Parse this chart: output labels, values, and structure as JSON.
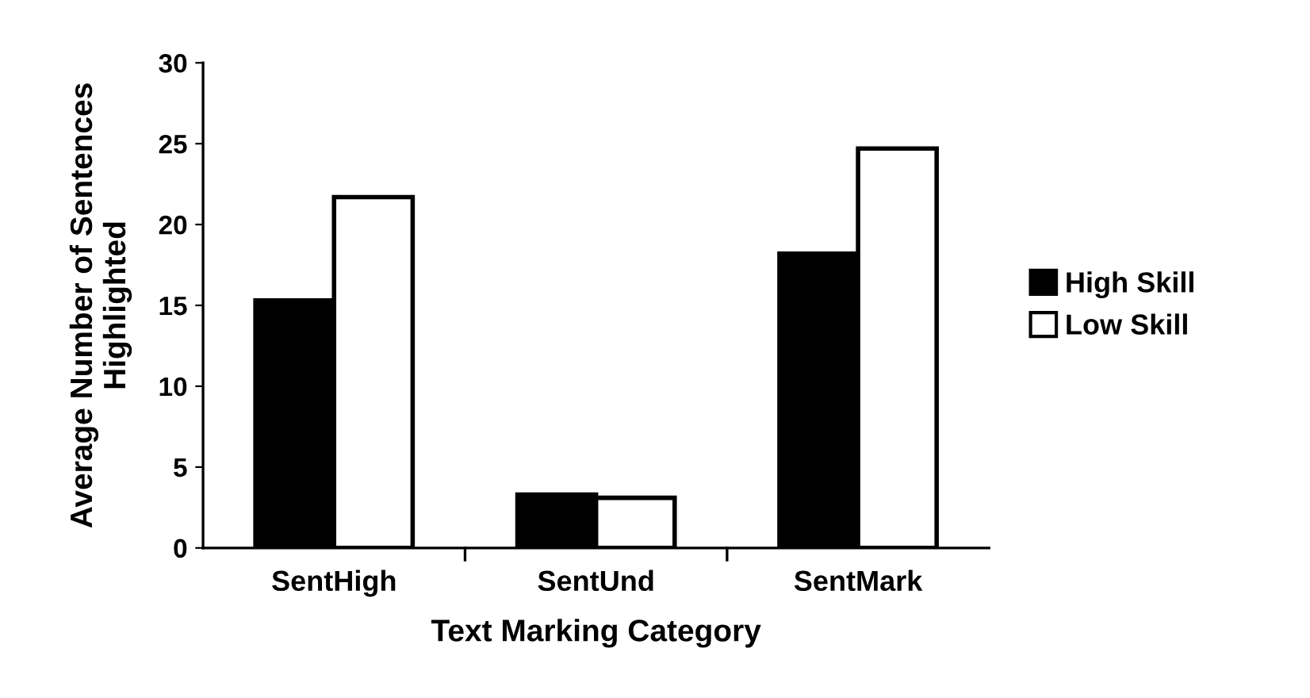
{
  "chart_data": {
    "type": "bar",
    "xlabel": "Text Marking Category",
    "ylabel": "Average Number of Sentences\nHighlighted",
    "categories": [
      "SentHigh",
      "SentUnd",
      "SentMark"
    ],
    "series": [
      {
        "name": "High Skill",
        "color": "#000000",
        "values": [
          15.3,
          3.3,
          18.2
        ]
      },
      {
        "name": "Low Skill",
        "color": "#ffffff",
        "values": [
          21.7,
          3.1,
          24.7
        ]
      }
    ],
    "ylim": [
      0,
      30
    ],
    "yticks": [
      0,
      5,
      10,
      15,
      20,
      25,
      30
    ],
    "grid": false,
    "legend": "right"
  }
}
